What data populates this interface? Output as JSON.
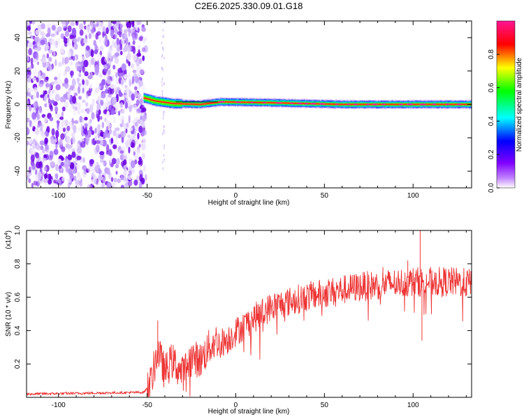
{
  "title": "C2E6.2025.330.09.01.G18",
  "chart_data": [
    {
      "type": "heatmap",
      "xlabel": "Height of straight line (km)",
      "ylabel": "Frequency (Hz)",
      "xlim": [
        -118,
        133
      ],
      "ylim": [
        -50,
        50
      ],
      "xticks": [
        -100,
        -50,
        0,
        50,
        100
      ],
      "yticks": [
        -40,
        -20,
        0,
        20,
        40
      ],
      "noise_region_x": [
        -118,
        -53
      ],
      "signal_track": [
        {
          "x": -52,
          "y": 4
        },
        {
          "x": -45,
          "y": 2
        },
        {
          "x": -35,
          "y": 0.5
        },
        {
          "x": -20,
          "y": 0
        },
        {
          "x": -8,
          "y": 1.5
        },
        {
          "x": 20,
          "y": 1
        },
        {
          "x": 60,
          "y": 0
        },
        {
          "x": 100,
          "y": 0
        },
        {
          "x": 133,
          "y": 0
        }
      ],
      "colorbar": {
        "label": "Normalized spectral amplitude",
        "ticks": [
          "0.0",
          "0.2",
          "0.4",
          "0.6",
          "0.8"
        ],
        "colors": [
          "#ffffff",
          "#8000ff",
          "#0000ff",
          "#00ffff",
          "#00ff00",
          "#ffff00",
          "#ff0000",
          "#ff1493"
        ]
      }
    },
    {
      "type": "line",
      "xlabel": "Height of straight line (km)",
      "ylabel": "SNR (10 * v/v)",
      "scale_note_base": "(x10",
      "scale_note_exp": "4",
      "scale_note_end": ")",
      "xlim": [
        -118,
        133
      ],
      "ylim": [
        0,
        1.0
      ],
      "xticks": [
        -100,
        -50,
        0,
        50,
        100
      ],
      "yticks": [
        0.2,
        0.4,
        0.6,
        0.8,
        1.0
      ],
      "color": "#ee3333",
      "envelope": [
        {
          "x": -118,
          "y": 0.02
        },
        {
          "x": -52,
          "y": 0.03
        },
        {
          "x": -48,
          "y": 0.08
        },
        {
          "x": -44,
          "y": 0.28
        },
        {
          "x": -40,
          "y": 0.15
        },
        {
          "x": -36,
          "y": 0.22
        },
        {
          "x": -30,
          "y": 0.14
        },
        {
          "x": -25,
          "y": 0.24
        },
        {
          "x": -20,
          "y": 0.22
        },
        {
          "x": -15,
          "y": 0.3
        },
        {
          "x": -10,
          "y": 0.35
        },
        {
          "x": -5,
          "y": 0.37
        },
        {
          "x": 0,
          "y": 0.42
        },
        {
          "x": 10,
          "y": 0.5
        },
        {
          "x": 20,
          "y": 0.57
        },
        {
          "x": 30,
          "y": 0.6
        },
        {
          "x": 40,
          "y": 0.63
        },
        {
          "x": 50,
          "y": 0.65
        },
        {
          "x": 60,
          "y": 0.67
        },
        {
          "x": 70,
          "y": 0.69
        },
        {
          "x": 80,
          "y": 0.7
        },
        {
          "x": 90,
          "y": 0.71
        },
        {
          "x": 100,
          "y": 0.72
        },
        {
          "x": 110,
          "y": 0.72
        },
        {
          "x": 120,
          "y": 0.72
        },
        {
          "x": 133,
          "y": 0.71
        }
      ],
      "spikes": [
        {
          "x": -44,
          "y": 0.46
        },
        {
          "x": 97,
          "y": 0.82
        },
        {
          "x": 104,
          "y": 1.0
        },
        {
          "x": 105,
          "y": 0.34
        },
        {
          "x": 83,
          "y": 0.78
        }
      ]
    }
  ]
}
